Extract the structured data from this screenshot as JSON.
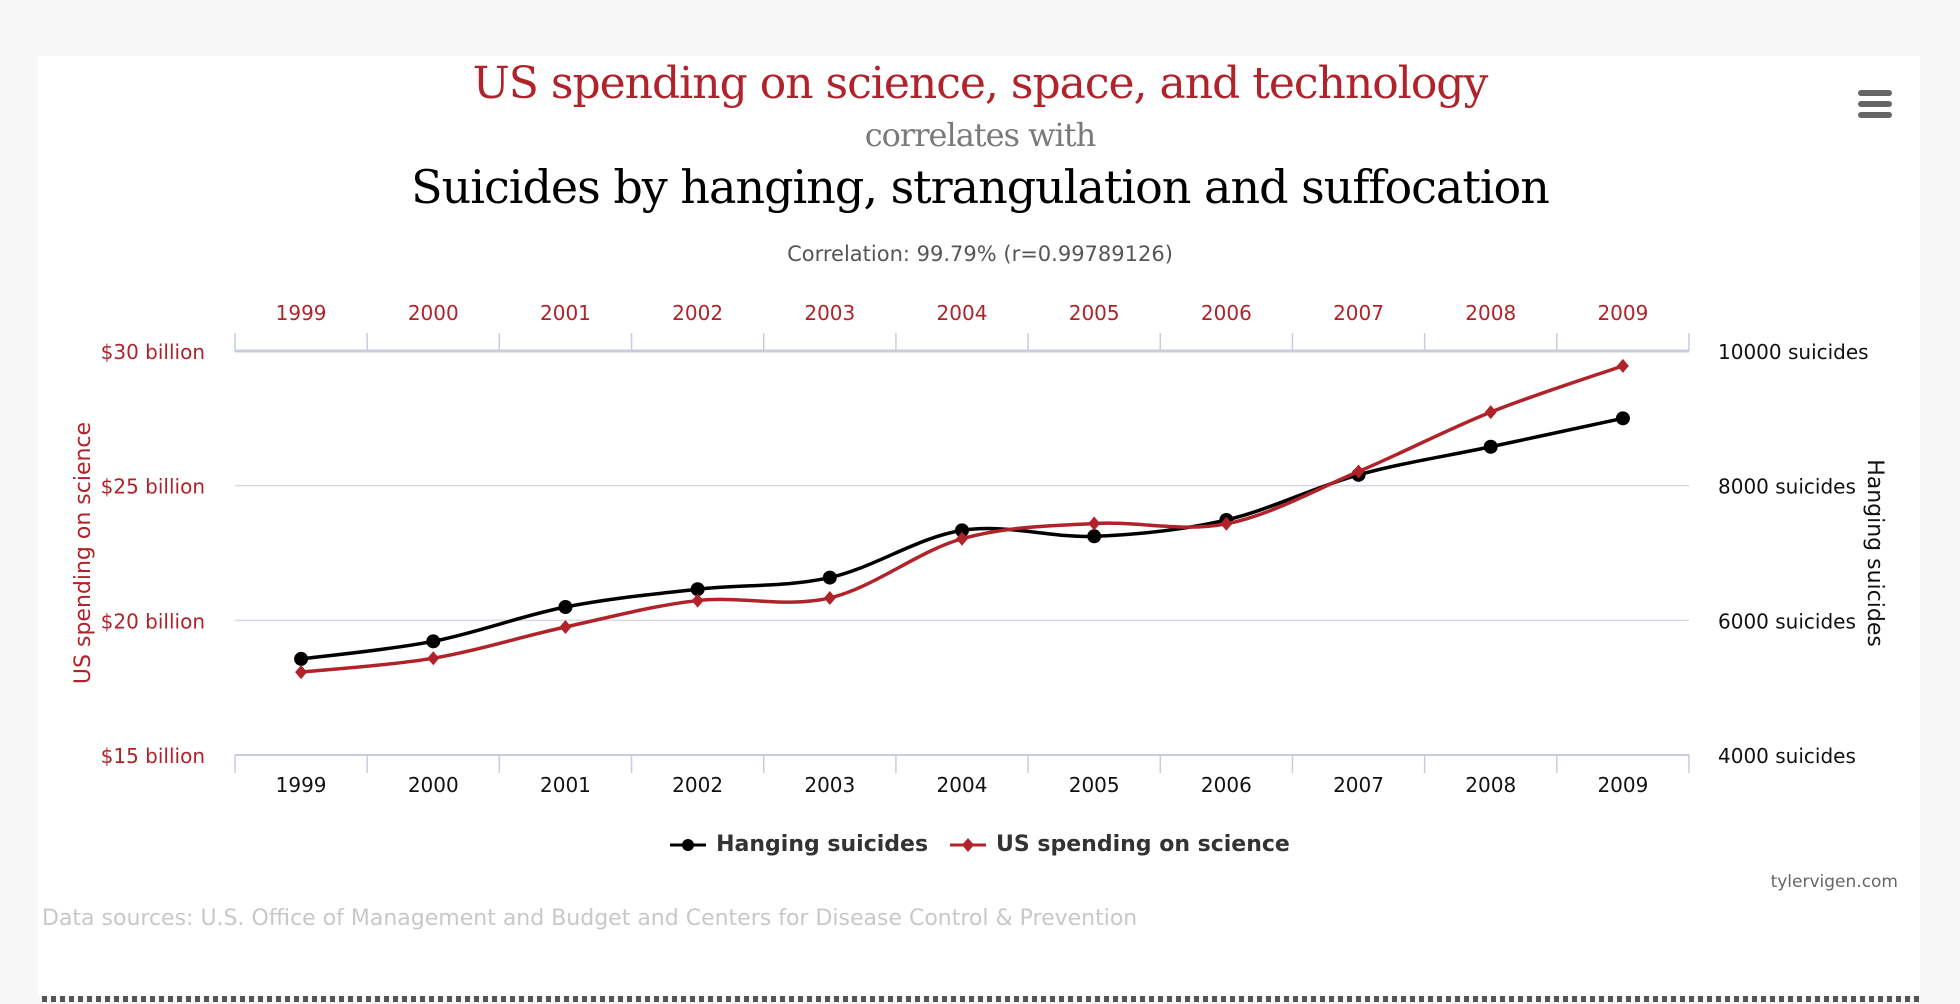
{
  "header": {
    "title_var1": "US spending on science, space, and technology",
    "correlates_with": "correlates with",
    "title_var2": "Suicides by hanging, strangulation and suffocation",
    "correlation": "Correlation: 99.79% (r=0.99789126)",
    "menu_icon": "hamburger-menu-icon"
  },
  "chart_data": {
    "type": "line",
    "categories": [
      "1999",
      "2000",
      "2001",
      "2002",
      "2003",
      "2004",
      "2005",
      "2006",
      "2007",
      "2008",
      "2009"
    ],
    "left_axis": {
      "label": "US spending on science",
      "ticks": [
        "$15 billion",
        "$20 billion",
        "$25 billion",
        "$30 billion"
      ],
      "range": [
        15,
        30
      ],
      "color": "#b0232a"
    },
    "right_axis": {
      "label": "Hanging suicides",
      "ticks": [
        "4000 suicides",
        "6000 suicides",
        "8000 suicides",
        "10000 suicides"
      ],
      "range": [
        4000,
        10000
      ],
      "color": "#000000"
    },
    "grid": true,
    "legend_position": "bottom",
    "series": [
      {
        "name": "Hanging suicides",
        "axis": "right",
        "color": "#000000",
        "marker": "circle",
        "values": [
          5427,
          5688,
          6198,
          6462,
          6635,
          7336,
          7248,
          7491,
          8161,
          8578,
          9000
        ]
      },
      {
        "name": "US spending on science",
        "axis": "left",
        "color": "#b0232a",
        "marker": "diamond",
        "values": [
          18.079,
          18.594,
          19.753,
          20.734,
          20.831,
          23.029,
          23.597,
          23.584,
          25.525,
          27.731,
          29.449
        ]
      }
    ]
  },
  "footer": {
    "credit": "tylervigen.com",
    "sources": "Data sources: U.S. Office of Management and Budget and Centers for Disease Control & Prevention"
  }
}
